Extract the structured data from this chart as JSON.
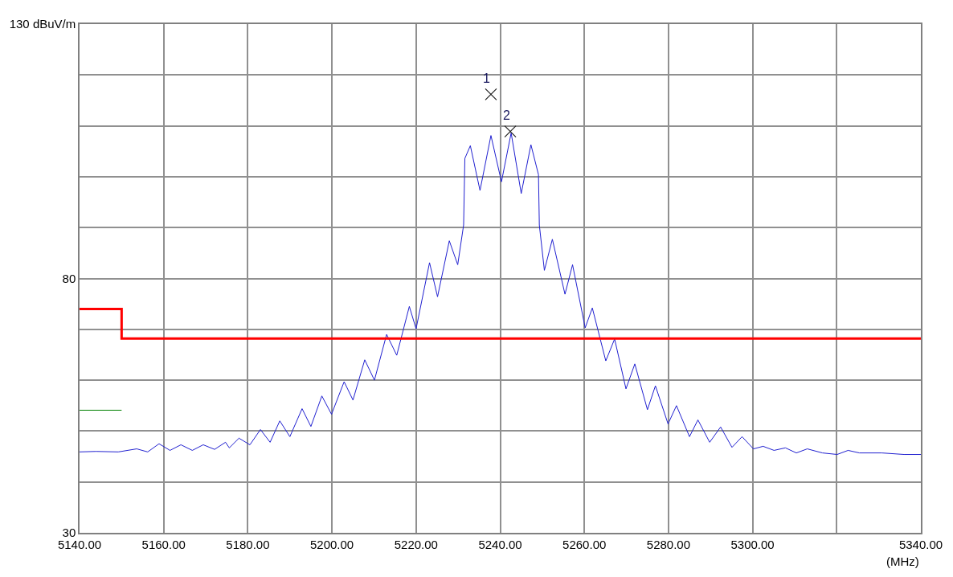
{
  "chart_data": {
    "type": "line",
    "xlabel": "(MHz)",
    "xlim": [
      5140,
      5340
    ],
    "ylim": [
      30,
      130
    ],
    "xticks": [
      {
        "value": 5140,
        "label": "5140.00"
      },
      {
        "value": 5160,
        "label": "5160.00"
      },
      {
        "value": 5180,
        "label": "5180.00"
      },
      {
        "value": 5200,
        "label": "5200.00"
      },
      {
        "value": 5220,
        "label": "5220.00"
      },
      {
        "value": 5240,
        "label": "5240.00"
      },
      {
        "value": 5260,
        "label": "5260.00"
      },
      {
        "value": 5280,
        "label": "5280.00"
      },
      {
        "value": 5300,
        "label": "5300.00"
      },
      {
        "value": 5320,
        "label": null
      },
      {
        "value": 5340,
        "label": "5340.00"
      }
    ],
    "yticks": [
      30,
      {
        "value": 40,
        "label": null
      },
      {
        "value": 50,
        "label": null
      },
      {
        "value": 60,
        "label": null
      },
      {
        "value": 70,
        "label": null
      },
      80,
      {
        "value": 90,
        "label": null
      },
      {
        "value": 100,
        "label": null
      },
      {
        "value": 110,
        "label": null
      },
      {
        "value": 120,
        "label": null
      },
      {
        "value": 130,
        "label": "130 dBuV/m"
      }
    ],
    "grid": true,
    "legend": false,
    "series": [
      {
        "color": "#2020d0",
        "x": [
          5140.0,
          5143.9,
          5149.2,
          5153.6,
          5156.2,
          5158.9,
          5161.5,
          5164.1,
          5166.8,
          5169.4,
          5172.1,
          5174.7,
          5175.6,
          5177.9,
          5180.5,
          5183.0,
          5185.3,
          5187.6,
          5190.0,
          5192.9,
          5195.0,
          5197.6,
          5199.9,
          5202.9,
          5205.0,
          5207.8,
          5210.1,
          5213.0,
          5215.4,
          5218.4,
          5220.0,
          5223.2,
          5225.1,
          5227.9,
          5229.9,
          5231.3,
          5231.6,
          5232.9,
          5235.2,
          5237.8,
          5240.3,
          5242.6,
          5245.0,
          5247.3,
          5249.1,
          5249.3,
          5250.5,
          5252.4,
          5255.4,
          5257.2,
          5260.2,
          5261.9,
          5265.1,
          5267.2,
          5269.9,
          5272.0,
          5275.0,
          5276.9,
          5279.9,
          5281.9,
          5285.0,
          5287.0,
          5289.8,
          5292.4,
          5295.1,
          5297.5,
          5300.2,
          5302.5,
          5305.1,
          5307.8,
          5310.4,
          5313.0,
          5316.6,
          5320.1,
          5322.7,
          5325.4,
          5330.7,
          5336.0,
          5340.0
        ],
        "values": [
          45.9,
          46.0,
          45.9,
          46.5,
          45.9,
          47.5,
          46.2,
          47.3,
          46.2,
          47.3,
          46.4,
          47.8,
          46.7,
          48.6,
          47.3,
          50.3,
          47.8,
          52.0,
          48.9,
          54.4,
          50.9,
          56.9,
          53.3,
          59.7,
          56.1,
          64.0,
          60.0,
          69.0,
          64.9,
          74.5,
          70.1,
          83.1,
          76.4,
          87.4,
          82.7,
          90.5,
          103.6,
          106.1,
          97.3,
          108.1,
          99.0,
          108.6,
          96.7,
          106.3,
          100.4,
          90.5,
          81.6,
          87.7,
          76.9,
          82.7,
          70.3,
          74.2,
          63.8,
          68.1,
          58.3,
          63.2,
          54.2,
          58.9,
          51.4,
          55.0,
          48.9,
          52.2,
          47.8,
          50.8,
          46.8,
          48.9,
          46.5,
          47.0,
          46.2,
          46.7,
          45.7,
          46.5,
          45.7,
          45.4,
          46.2,
          45.7,
          45.7,
          45.4,
          45.4
        ]
      },
      {
        "type": "step",
        "color": "#ff0000",
        "x": [
          5140,
          5150,
          5340
        ],
        "values": [
          74.0,
          68.2,
          68.2
        ]
      },
      {
        "type": "line",
        "color": "#008000",
        "x": [
          5140,
          5150
        ],
        "values": [
          54.1,
          54.1
        ]
      },
      {
        "type": "scatter",
        "color": "#202020",
        "marker": "cross",
        "x": [
          5237.8,
          5242.4
        ],
        "values": [
          116.2,
          108.9
        ]
      }
    ],
    "annotations": [
      {
        "text": "1",
        "x": 5237.8,
        "y": 116.2
      },
      {
        "text": "2",
        "x": 5242.4,
        "y": 108.9
      }
    ]
  }
}
